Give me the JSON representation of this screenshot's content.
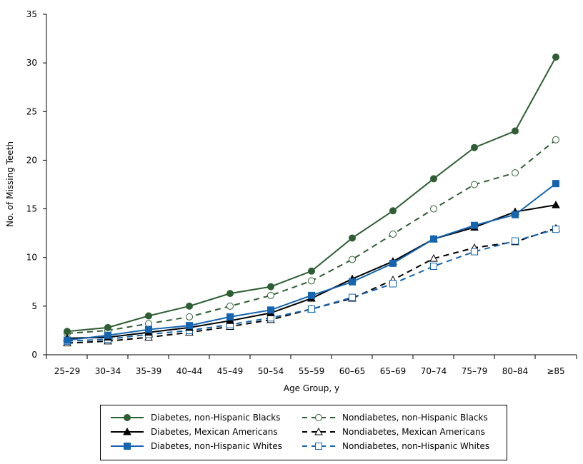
{
  "chart_data": {
    "type": "line",
    "xlabel": "Age Group, y",
    "ylabel": "No. of Missing Teeth",
    "ylim": [
      0,
      35
    ],
    "yticks": [
      0,
      5,
      10,
      15,
      20,
      25,
      30,
      35
    ],
    "categories": [
      "25–29",
      "30–34",
      "35–39",
      "40–44",
      "45–49",
      "50–54",
      "55–59",
      "60–65",
      "65–69",
      "70–74",
      "75–79",
      "80–84",
      "≥85"
    ],
    "legend_position": "bottom",
    "grid": false,
    "series": [
      {
        "name": "Diabetes, non-Hispanic Blacks",
        "color": "#2e5e33",
        "dash": false,
        "marker": "filled-circle",
        "values": [
          2.4,
          2.8,
          4.0,
          5.0,
          6.3,
          7.0,
          8.6,
          12.0,
          14.8,
          18.1,
          21.3,
          23.0,
          30.6
        ]
      },
      {
        "name": "Diabetes, Mexican Americans",
        "color": "#000000",
        "dash": false,
        "marker": "filled-triangle",
        "values": [
          1.7,
          1.8,
          2.3,
          2.8,
          3.5,
          4.3,
          5.8,
          7.8,
          9.6,
          11.9,
          13.1,
          14.7,
          15.4
        ]
      },
      {
        "name": "Diabetes, non-Hispanic Whites",
        "color": "#1464b0",
        "dash": false,
        "marker": "filled-square",
        "values": [
          1.5,
          2.0,
          2.6,
          3.0,
          3.9,
          4.6,
          6.1,
          7.5,
          9.4,
          11.9,
          13.3,
          14.4,
          17.6
        ]
      },
      {
        "name": "Nondiabetes, non-Hispanic Blacks",
        "color": "#2e5e33",
        "dash": true,
        "marker": "open-circle",
        "values": [
          2.2,
          2.5,
          3.2,
          3.9,
          5.0,
          6.1,
          7.6,
          9.8,
          12.4,
          15.0,
          17.5,
          18.7,
          22.1
        ]
      },
      {
        "name": "Nondiabetes, Mexican Americans",
        "color": "#000000",
        "dash": true,
        "marker": "open-triangle",
        "values": [
          1.2,
          1.4,
          1.8,
          2.3,
          2.9,
          3.6,
          4.7,
          5.8,
          7.7,
          9.9,
          11.0,
          11.6,
          13.0
        ]
      },
      {
        "name": "Nondiabetes, non-Hispanic Whites",
        "color": "#1464b0",
        "dash": true,
        "marker": "open-square",
        "values": [
          1.4,
          1.6,
          2.1,
          2.5,
          3.1,
          3.8,
          4.7,
          5.9,
          7.3,
          9.1,
          10.6,
          11.7,
          12.9
        ]
      }
    ]
  }
}
